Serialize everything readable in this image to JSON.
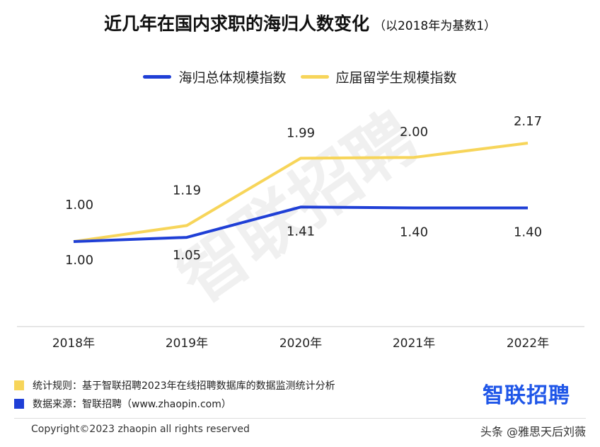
{
  "title": "近几年在国内求职的海归人数变化",
  "subtitle": "（以2018年为基数1）",
  "colors": {
    "blue": "#1f3fd6",
    "yellow": "#f7d55a",
    "logo": "#1f56e8"
  },
  "legend": [
    {
      "label": "海归总体规模指数",
      "color": "#1f3fd6"
    },
    {
      "label": "应届留学生规模指数",
      "color": "#f7d55a"
    }
  ],
  "chart_data": {
    "type": "line",
    "title": "近几年在国内求职的海归人数变化（以2018年为基数1）",
    "categories": [
      "2018年",
      "2019年",
      "2020年",
      "2021年",
      "2022年"
    ],
    "ylim": [
      0,
      2.5
    ],
    "grid": false,
    "legend_position": "top-center",
    "series": [
      {
        "name": "海归总体规模指数",
        "values": [
          1.0,
          1.05,
          1.41,
          1.4,
          1.4
        ],
        "labels": [
          "1.00",
          "1.05",
          "1.41",
          "1.40",
          "1.40"
        ]
      },
      {
        "name": "应届留学生规模指数",
        "values": [
          1.0,
          1.19,
          1.99,
          2.0,
          2.17
        ],
        "labels": [
          "1.00",
          "1.19",
          "1.99",
          "2.00",
          "2.17"
        ]
      }
    ]
  },
  "watermark": "智联招聘",
  "footer": {
    "rule_label": "统计规则：基于智联招聘2023年在线招聘数据库的数据监测统计分析",
    "source_label": "数据来源：智联招聘（www.zhaopin.com）",
    "logo_text": "智联招聘",
    "copyright": "Copyright©2023 zhaopin all rights reserved",
    "source_tag": "头条 @雅思天后刘薇"
  }
}
